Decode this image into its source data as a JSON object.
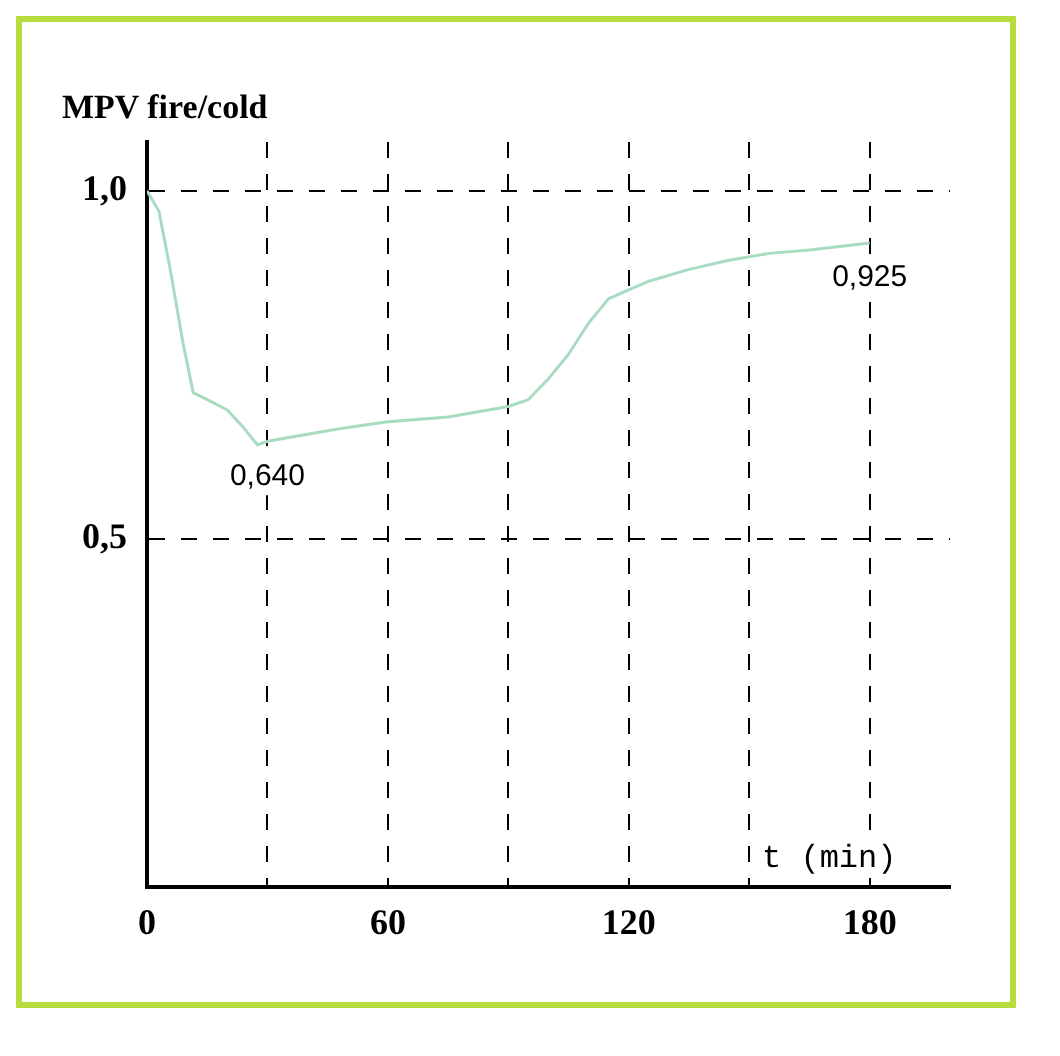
{
  "chart_data": {
    "type": "line",
    "ylabel": "MPV fire/cold",
    "xlabel": "t (min)",
    "x": [
      0,
      3,
      6,
      9,
      11.5,
      15,
      20,
      24,
      27.5,
      30,
      40,
      50,
      60,
      75,
      90,
      95,
      100,
      105,
      110,
      115,
      125,
      135,
      145,
      155,
      165,
      180
    ],
    "series": [
      {
        "color": "#a8dcc0",
        "values": [
          1.0,
          0.97,
          0.88,
          0.78,
          0.71,
          0.7,
          0.685,
          0.66,
          0.635,
          0.64,
          0.65,
          0.66,
          0.668,
          0.675,
          0.69,
          0.7,
          0.73,
          0.765,
          0.81,
          0.845,
          0.87,
          0.887,
          0.9,
          0.91,
          0.915,
          0.925
        ]
      }
    ],
    "xlim": [
      0,
      200
    ],
    "ylim": [
      0,
      1.07
    ],
    "xticks": [
      0,
      {
        "value": 30,
        "label": null
      },
      60,
      {
        "value": 90,
        "label": null
      },
      120,
      {
        "value": 150,
        "label": null
      },
      180
    ],
    "yticks": [
      {
        "value": 0.5,
        "label": "0,5"
      },
      {
        "value": 1.0,
        "label": "1,0"
      }
    ],
    "grid": true,
    "line_style": "solid",
    "marker": "none",
    "legend": false,
    "annotations": [
      {
        "text": "0,640",
        "x": 30,
        "y": 0.64
      },
      {
        "text": "0,925",
        "x": 180,
        "y": 0.925
      }
    ]
  }
}
